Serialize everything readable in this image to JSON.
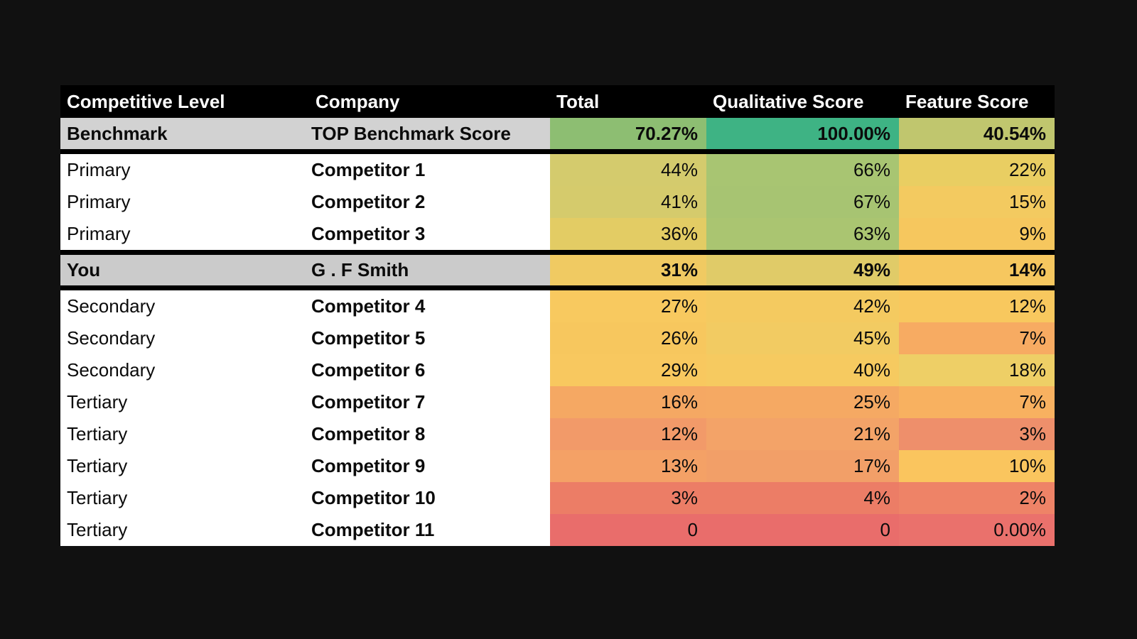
{
  "background_color": "#111111",
  "header": {
    "bg_color": "#000000",
    "text_color": "#ffffff"
  },
  "chart_data": {
    "type": "table",
    "legend_note": "heatmap-style conditional formatting from green (high) to red (low)",
    "columns": [
      {
        "label": "Competitive Level"
      },
      {
        "label": "Company"
      },
      {
        "label": "Total"
      },
      {
        "label": "Qualitative Score"
      },
      {
        "label": "Feature Score"
      }
    ],
    "rows": [
      {
        "level": "Benchmark",
        "company": "TOP Benchmark Score",
        "total": "70.27%",
        "qual": "100.00%",
        "feature": "40.54%",
        "band": "benchmark",
        "bold": true,
        "label_bg": "#d2d2d2",
        "cell_colors": [
          "#8dbe72",
          "#3eb384",
          "#c0c66e"
        ],
        "divider_before": false,
        "divider_after": true
      },
      {
        "level": "Primary",
        "company": "Competitor 1",
        "total": "44%",
        "qual": "66%",
        "feature": "22%",
        "band": "normal",
        "bold": false,
        "label_bg": "#ffffff",
        "cell_colors": [
          "#d4cb6d",
          "#a8c572",
          "#e9ce62"
        ],
        "divider_before": false,
        "divider_after": false
      },
      {
        "level": "Primary",
        "company": "Competitor 2",
        "total": "41%",
        "qual": "67%",
        "feature": "15%",
        "band": "normal",
        "bold": false,
        "label_bg": "#ffffff",
        "cell_colors": [
          "#d5cb6c",
          "#a7c472",
          "#f3ca60"
        ],
        "divider_before": false,
        "divider_after": false
      },
      {
        "level": "Primary",
        "company": "Competitor 3",
        "total": "36%",
        "qual": "63%",
        "feature": "9%",
        "band": "normal",
        "bold": false,
        "label_bg": "#ffffff",
        "cell_colors": [
          "#e3cc64",
          "#aac571",
          "#f6c75e"
        ],
        "divider_before": false,
        "divider_after": false
      },
      {
        "level": "You",
        "company": "G . F Smith",
        "total": "31%",
        "qual": "49%",
        "feature": "14%",
        "band": "you",
        "bold": true,
        "label_bg": "#cbcbcb",
        "cell_colors": [
          "#f0ca62",
          "#e0cb68",
          "#f6c75f"
        ],
        "divider_before": true,
        "divider_after": true
      },
      {
        "level": "Secondary",
        "company": "Competitor 4",
        "total": "27%",
        "qual": "42%",
        "feature": "12%",
        "band": "normal",
        "bold": false,
        "label_bg": "#ffffff",
        "cell_colors": [
          "#f8c95f",
          "#f4ca60",
          "#f8c85e"
        ],
        "divider_before": false,
        "divider_after": false
      },
      {
        "level": "Secondary",
        "company": "Competitor 5",
        "total": "26%",
        "qual": "45%",
        "feature": "7%",
        "band": "normal",
        "bold": false,
        "label_bg": "#ffffff",
        "cell_colors": [
          "#f7c75e",
          "#f2cb62",
          "#f7ab62"
        ],
        "divider_before": false,
        "divider_after": false
      },
      {
        "level": "Secondary",
        "company": "Competitor 6",
        "total": "29%",
        "qual": "40%",
        "feature": "18%",
        "band": "normal",
        "bold": false,
        "label_bg": "#ffffff",
        "cell_colors": [
          "#f8c85f",
          "#f6ca60",
          "#eecf66"
        ],
        "divider_before": false,
        "divider_after": false
      },
      {
        "level": "Tertiary",
        "company": "Competitor 7",
        "total": "16%",
        "qual": "25%",
        "feature": "7%",
        "band": "normal",
        "bold": false,
        "label_bg": "#ffffff",
        "cell_colors": [
          "#f5a863",
          "#f5a963",
          "#f8b160"
        ],
        "divider_before": false,
        "divider_after": false
      },
      {
        "level": "Tertiary",
        "company": "Competitor 8",
        "total": "12%",
        "qual": "21%",
        "feature": "3%",
        "band": "normal",
        "bold": false,
        "label_bg": "#ffffff",
        "cell_colors": [
          "#f29a69",
          "#f3a368",
          "#ee8f6b"
        ],
        "divider_before": false,
        "divider_after": false
      },
      {
        "level": "Tertiary",
        "company": "Competitor 9",
        "total": "13%",
        "qual": "17%",
        "feature": "10%",
        "band": "normal",
        "bold": false,
        "label_bg": "#ffffff",
        "cell_colors": [
          "#f4a166",
          "#f29f68",
          "#fac55e"
        ],
        "divider_before": false,
        "divider_after": false
      },
      {
        "level": "Tertiary",
        "company": "Competitor 10",
        "total": "3%",
        "qual": "4%",
        "feature": "2%",
        "band": "normal",
        "bold": false,
        "label_bg": "#ffffff",
        "cell_colors": [
          "#ec7d66",
          "#ec7d66",
          "#ee8367"
        ],
        "divider_before": false,
        "divider_after": false
      },
      {
        "level": "Tertiary",
        "company": "Competitor 11",
        "total": "0",
        "qual": "0",
        "feature": "0.00%",
        "band": "normal",
        "bold": false,
        "label_bg": "#ffffff",
        "cell_colors": [
          "#e96d6b",
          "#e96d6b",
          "#ea716c"
        ],
        "divider_before": false,
        "divider_after": false
      }
    ]
  }
}
